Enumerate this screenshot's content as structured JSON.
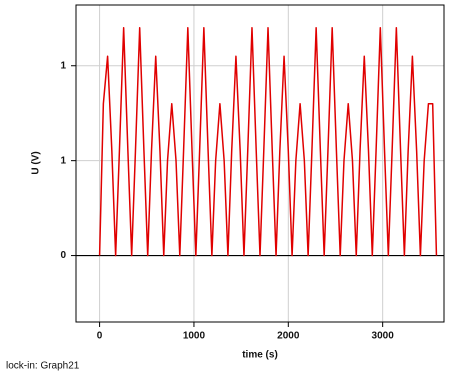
{
  "chart_data": {
    "type": "line",
    "x_label": "time (s)",
    "y_label": "U (V)",
    "footnote": "lock-in: Graph21",
    "xlim": [
      -250,
      3650
    ],
    "ylim": [
      -0.35,
      1.32
    ],
    "xticks": [
      0,
      1000,
      2000,
      3000
    ],
    "yticks": [
      0,
      {
        "value": 0.5,
        "label": "1"
      },
      {
        "value": 1,
        "label": "1"
      }
    ],
    "grid": true,
    "series": [
      {
        "color": "#e00000",
        "x": [
          0,
          40,
          85,
          130,
          170,
          210,
          255,
          300,
          340,
          380,
          425,
          470,
          510,
          550,
          595,
          640,
          680,
          720,
          765,
          810,
          850,
          890,
          935,
          980,
          1020,
          1060,
          1105,
          1150,
          1190,
          1230,
          1275,
          1320,
          1360,
          1400,
          1445,
          1490,
          1530,
          1570,
          1615,
          1660,
          1700,
          1740,
          1785,
          1830,
          1870,
          1910,
          1955,
          2000,
          2040,
          2080,
          2125,
          2170,
          2210,
          2250,
          2295,
          2340,
          2380,
          2420,
          2465,
          2510,
          2550,
          2590,
          2635,
          2680,
          2720,
          2760,
          2805,
          2850,
          2890,
          2930,
          2975,
          3020,
          3060,
          3100,
          3145,
          3190,
          3230,
          3270,
          3315,
          3360,
          3400,
          3440,
          3485,
          3530,
          3570
        ],
        "values": [
          0,
          0.8,
          1.05,
          0.55,
          0,
          0.55,
          1.2,
          0.55,
          0,
          0.55,
          1.2,
          0.55,
          0,
          0.55,
          1.05,
          0.55,
          0,
          0.5,
          0.8,
          0.5,
          0,
          0.55,
          1.2,
          0.55,
          0,
          0.55,
          1.2,
          0.55,
          0,
          0.5,
          0.8,
          0.5,
          0,
          0.55,
          1.05,
          0.55,
          0,
          0.55,
          1.2,
          0.55,
          0,
          0.55,
          1.2,
          0.55,
          0,
          0.55,
          1.05,
          0.55,
          0,
          0.5,
          0.8,
          0.5,
          0,
          0.55,
          1.2,
          0.55,
          0,
          0.55,
          1.2,
          0.55,
          0,
          0.5,
          0.8,
          0.5,
          0,
          0.55,
          1.05,
          0.55,
          0,
          0.55,
          1.2,
          0.55,
          0,
          0.55,
          1.2,
          0.55,
          0,
          0.55,
          1.05,
          0.55,
          0,
          0.5,
          0.8,
          0.8,
          0
        ]
      }
    ]
  }
}
